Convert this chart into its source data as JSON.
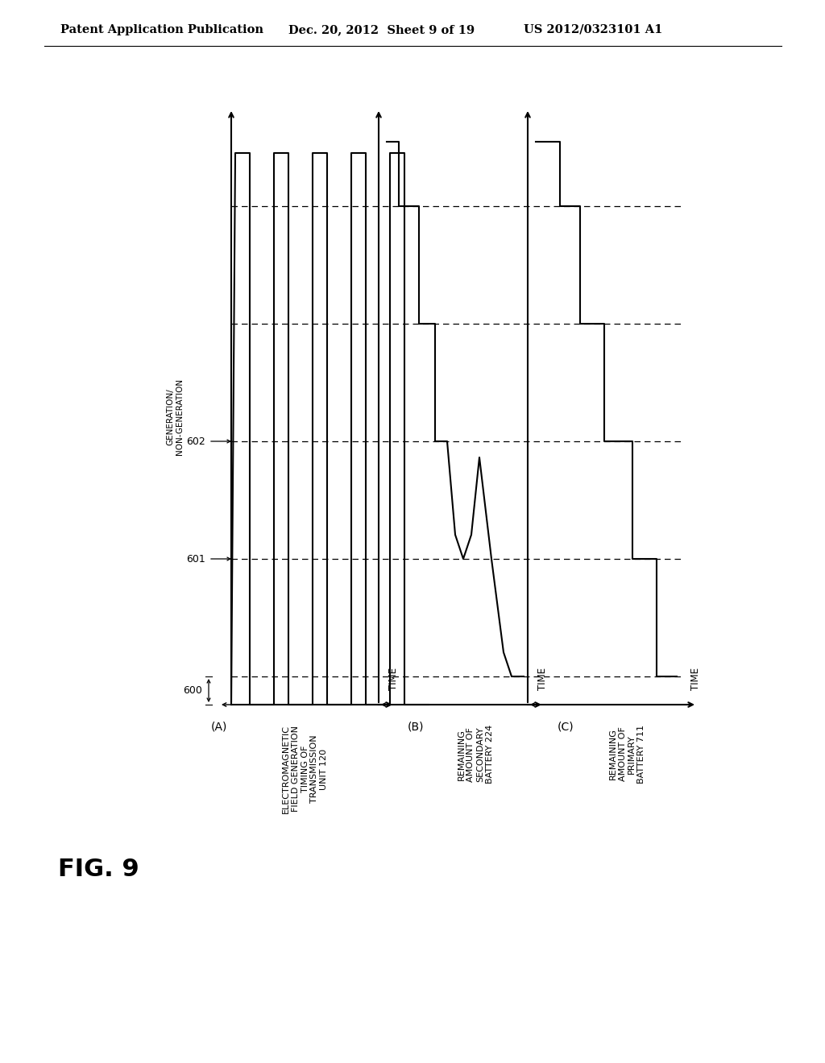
{
  "header_left": "Patent Application Publication",
  "header_mid": "Dec. 20, 2012  Sheet 9 of 19",
  "header_right": "US 2012/0323101 A1",
  "fig_label": "FIG. 9",
  "background_color": "#ffffff",
  "panel_A_label": "(A)",
  "panel_B_label": "(B)",
  "panel_C_label": "(C)",
  "panel_A_title": "ELECTROMAGNETIC\nFIELD GENERATION\nTIMING OF\nTRANSMISSION\nUNIT 120",
  "panel_B_title": "REMAINING\nAMOUNT OF\nSECONDARY\nBATTERY 224",
  "panel_C_title": "REMAINING\nAMOUNT OF\nPRIMARY\nBATTERY 711",
  "yaxis_label": "GENERATION/\nNON-GENERATION",
  "time_label": "TIME",
  "label_600": "600",
  "label_601": "601",
  "label_602": "602",
  "lw": 1.5
}
